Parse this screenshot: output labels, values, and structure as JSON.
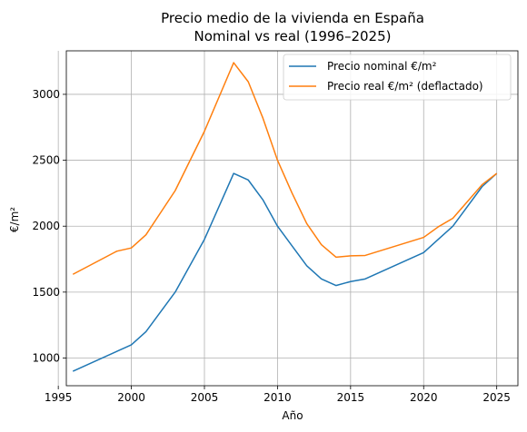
{
  "chart_data": {
    "type": "line",
    "title": "Precio medio de la vivienda en España",
    "subtitle": "Nominal vs real (1996–2025)",
    "xlabel": "Año",
    "ylabel": "€/m²",
    "xlim": [
      1995.55,
      2026.45
    ],
    "ylim": [
      790,
      3330
    ],
    "xticks": [
      1995,
      2000,
      2005,
      2010,
      2015,
      2020,
      2025
    ],
    "yticks": [
      1000,
      1500,
      2000,
      2500,
      3000
    ],
    "grid": true,
    "legend_position": "top-right",
    "series": [
      {
        "name": "Precio nominal €/m²",
        "color": "#1f77b4",
        "x": [
          1996,
          1999,
          2000,
          2001,
          2003,
          2005,
          2007,
          2008,
          2009,
          2010,
          2011,
          2012,
          2013,
          2014,
          2015,
          2016,
          2020,
          2021,
          2022,
          2024,
          2025
        ],
        "y": [
          900,
          1050,
          1100,
          1200,
          1500,
          1900,
          2400,
          2350,
          2200,
          2000,
          1850,
          1700,
          1600,
          1550,
          1580,
          1600,
          1800,
          1900,
          2000,
          2300,
          2400
        ]
      },
      {
        "name": "Precio real €/m² (deflactado)",
        "color": "#ff7f0e",
        "x": [
          1996,
          1999,
          2000,
          2001,
          2003,
          2005,
          2007,
          2008,
          2009,
          2010,
          2011,
          2012,
          2013,
          2014,
          2015,
          2016,
          2020,
          2021,
          2022,
          2024,
          2025
        ],
        "y": [
          1635,
          1810,
          1835,
          1935,
          2270,
          2720,
          3240,
          3095,
          2820,
          2500,
          2250,
          2020,
          1860,
          1765,
          1775,
          1778,
          1915,
          1995,
          2060,
          2315,
          2400
        ]
      }
    ]
  }
}
